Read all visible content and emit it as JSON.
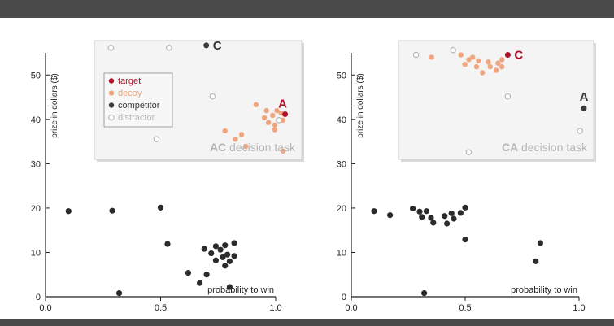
{
  "colors": {
    "band": "#4a4a4a",
    "axis": "#222222",
    "point": "#2b2b2b",
    "target": "#b0102a",
    "decoy": "#f0a57e",
    "competitor": "#3a3a3a",
    "distractor": "#b8b8b8",
    "task_text": "#b5b5b5",
    "inset_bg": "#f4f4f4",
    "inset_border": "#cfcfcf"
  },
  "chart_data": [
    {
      "type": "scatter",
      "xlabel": "probability to win",
      "ylabel": "prize in dollars ($)",
      "xlim": [
        0,
        1
      ],
      "ylim": [
        0,
        55
      ],
      "xticks": [
        "0.0",
        "0.5",
        "1.0"
      ],
      "yticks": [
        "0",
        "10",
        "20",
        "30",
        "40",
        "50"
      ],
      "points": [
        [
          0.1,
          19.3
        ],
        [
          0.29,
          19.4
        ],
        [
          0.32,
          0.8
        ],
        [
          0.5,
          20.1
        ],
        [
          0.53,
          11.9
        ],
        [
          0.62,
          5.4
        ],
        [
          0.67,
          3.1
        ],
        [
          0.69,
          10.8
        ],
        [
          0.7,
          5.0
        ],
        [
          0.72,
          9.8
        ],
        [
          0.74,
          11.4
        ],
        [
          0.74,
          8.2
        ],
        [
          0.76,
          10.6
        ],
        [
          0.77,
          8.9
        ],
        [
          0.78,
          11.6
        ],
        [
          0.78,
          7.0
        ],
        [
          0.79,
          9.5
        ],
        [
          0.8,
          2.2
        ],
        [
          0.8,
          8.0
        ],
        [
          0.82,
          12.1
        ],
        [
          0.82,
          9.2
        ]
      ],
      "inset": {
        "task_letters": "AC",
        "task_suffix": " decision task",
        "legend": [
          {
            "label": "target",
            "role": "target"
          },
          {
            "label": "decoy",
            "role": "decoy"
          },
          {
            "label": "competitor",
            "role": "competitor"
          },
          {
            "label": "distractor",
            "role": "distractor"
          }
        ],
        "target_label": "A",
        "competitor_label": "C",
        "target": [
          0.92,
          0.62
        ],
        "competitor": [
          0.54,
          0.04
        ],
        "decoys": [
          [
            0.78,
            0.54
          ],
          [
            0.83,
            0.59
          ],
          [
            0.82,
            0.65
          ],
          [
            0.86,
            0.63
          ],
          [
            0.88,
            0.59
          ],
          [
            0.9,
            0.61
          ],
          [
            0.84,
            0.69
          ],
          [
            0.87,
            0.71
          ],
          [
            0.91,
            0.67
          ],
          [
            0.87,
            0.75
          ],
          [
            0.63,
            0.76
          ],
          [
            0.68,
            0.83
          ],
          [
            0.71,
            0.79
          ],
          [
            0.73,
            0.89
          ],
          [
            0.91,
            0.93
          ]
        ],
        "distractors": [
          [
            0.08,
            0.06
          ],
          [
            0.3,
            0.83
          ],
          [
            0.36,
            0.06
          ],
          [
            0.57,
            0.47
          ],
          [
            0.89,
            0.67
          ]
        ]
      }
    },
    {
      "type": "scatter",
      "xlabel": "probability to win",
      "ylabel": "prize in dollars ($)",
      "xlim": [
        0,
        1
      ],
      "ylim": [
        0,
        55
      ],
      "xticks": [
        "0.0",
        "0.5",
        "1.0"
      ],
      "yticks": [
        "0",
        "10",
        "20",
        "30",
        "40",
        "50"
      ],
      "points": [
        [
          0.1,
          19.3
        ],
        [
          0.17,
          18.4
        ],
        [
          0.27,
          19.9
        ],
        [
          0.3,
          19.2
        ],
        [
          0.31,
          18.0
        ],
        [
          0.32,
          0.8
        ],
        [
          0.33,
          19.3
        ],
        [
          0.35,
          17.8
        ],
        [
          0.36,
          16.7
        ],
        [
          0.41,
          18.2
        ],
        [
          0.42,
          16.5
        ],
        [
          0.44,
          18.8
        ],
        [
          0.45,
          17.6
        ],
        [
          0.48,
          18.9
        ],
        [
          0.5,
          20.1
        ],
        [
          0.5,
          12.9
        ],
        [
          0.81,
          8.0
        ],
        [
          0.83,
          12.1
        ]
      ],
      "inset": {
        "task_letters": "CA",
        "task_suffix": " decision task",
        "target_label": "C",
        "competitor_label": "A",
        "target": [
          0.56,
          0.12
        ],
        "competitor": [
          0.95,
          0.57
        ],
        "decoys": [
          [
            0.17,
            0.14
          ],
          [
            0.32,
            0.12
          ],
          [
            0.36,
            0.16
          ],
          [
            0.38,
            0.14
          ],
          [
            0.4,
            0.22
          ],
          [
            0.43,
            0.27
          ],
          [
            0.46,
            0.18
          ],
          [
            0.5,
            0.25
          ],
          [
            0.51,
            0.19
          ],
          [
            0.53,
            0.16
          ],
          [
            0.53,
            0.22
          ],
          [
            0.47,
            0.22
          ],
          [
            0.34,
            0.2
          ],
          [
            0.41,
            0.17
          ]
        ],
        "distractors": [
          [
            0.09,
            0.12
          ],
          [
            0.28,
            0.08
          ],
          [
            0.56,
            0.47
          ],
          [
            0.93,
            0.76
          ],
          [
            0.36,
            0.94
          ]
        ]
      }
    }
  ]
}
